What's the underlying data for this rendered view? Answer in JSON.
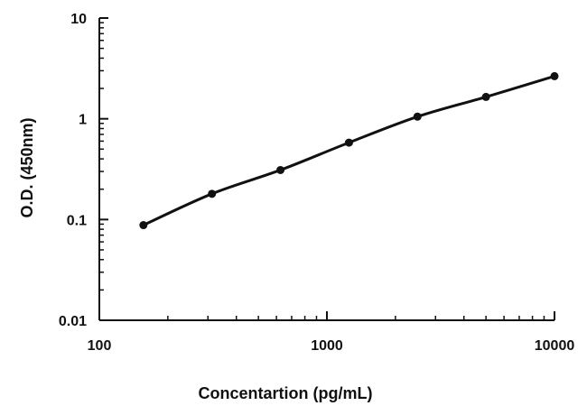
{
  "chart_data": {
    "type": "line",
    "title": "",
    "xlabel": "Concentartion (pg/mL)",
    "ylabel": "O.D. (450nm)",
    "xscale": "log",
    "yscale": "log",
    "xlim": [
      100,
      10000
    ],
    "ylim": [
      0.01,
      10
    ],
    "x_ticks": [
      100,
      1000,
      10000
    ],
    "x_tick_labels": [
      "100",
      "1000",
      "10000"
    ],
    "y_ticks": [
      0.01,
      0.1,
      1,
      10
    ],
    "y_tick_labels": [
      "0.01",
      "0.1",
      "1",
      "10"
    ],
    "grid": false,
    "legend": "none",
    "series": [
      {
        "x": [
          156.25,
          312.5,
          625,
          1250,
          2500,
          5000,
          10000
        ],
        "y": [
          0.088,
          0.18,
          0.31,
          0.58,
          1.05,
          1.65,
          2.65
        ],
        "color": "#111111",
        "markers": true,
        "line": "smoothed fit"
      }
    ]
  }
}
